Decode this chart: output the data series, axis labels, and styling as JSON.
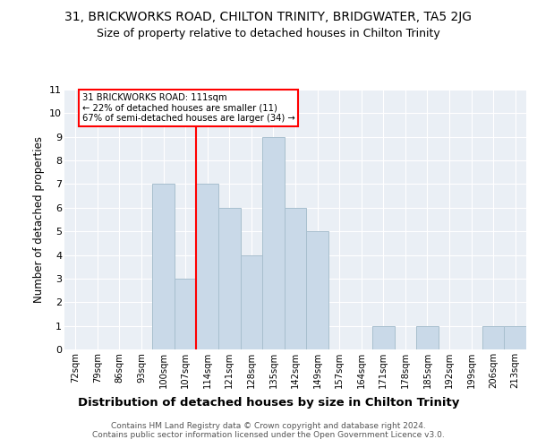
{
  "title1": "31, BRICKWORKS ROAD, CHILTON TRINITY, BRIDGWATER, TA5 2JG",
  "title2": "Size of property relative to detached houses in Chilton Trinity",
  "xlabel": "Distribution of detached houses by size in Chilton Trinity",
  "ylabel": "Number of detached properties",
  "footnote": "Contains HM Land Registry data © Crown copyright and database right 2024.\nContains public sector information licensed under the Open Government Licence v3.0.",
  "bin_labels": [
    "72sqm",
    "79sqm",
    "86sqm",
    "93sqm",
    "100sqm",
    "107sqm",
    "114sqm",
    "121sqm",
    "128sqm",
    "135sqm",
    "142sqm",
    "149sqm",
    "157sqm",
    "164sqm",
    "171sqm",
    "178sqm",
    "185sqm",
    "192sqm",
    "199sqm",
    "206sqm",
    "213sqm"
  ],
  "bar_values": [
    0,
    0,
    0,
    0,
    7,
    3,
    7,
    6,
    4,
    9,
    6,
    5,
    0,
    0,
    1,
    0,
    1,
    0,
    0,
    1,
    1
  ],
  "bar_color": "#c9d9e8",
  "bar_edgecolor": "#a8bfce",
  "reference_line_x": 5.5,
  "annotation_text": "31 BRICKWORKS ROAD: 111sqm\n← 22% of detached houses are smaller (11)\n67% of semi-detached houses are larger (34) →",
  "annotation_box_color": "white",
  "annotation_box_edgecolor": "red",
  "ref_line_color": "red",
  "ylim": [
    0,
    11
  ],
  "yticks": [
    0,
    1,
    2,
    3,
    4,
    5,
    6,
    7,
    8,
    9,
    10,
    11
  ],
  "bg_color": "#eaeff5",
  "title1_fontsize": 10,
  "title2_fontsize": 9,
  "xlabel_fontsize": 9.5,
  "ylabel_fontsize": 8.5,
  "footnote_fontsize": 6.5
}
